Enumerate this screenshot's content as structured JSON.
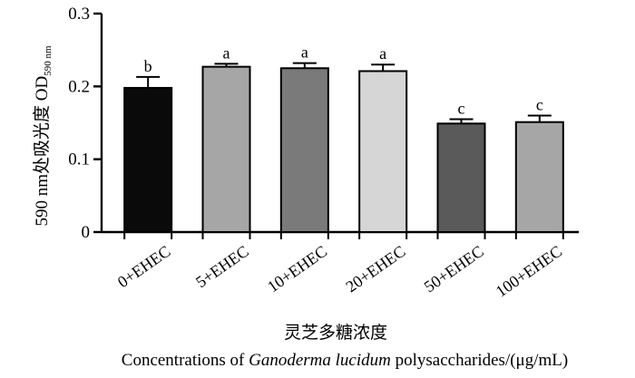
{
  "chart_data": {
    "type": "bar",
    "categories": [
      "0+EHEC",
      "5+EHEC",
      "10+EHEC",
      "20+EHEC",
      "50+EHEC",
      "100+EHEC"
    ],
    "values": [
      0.198,
      0.227,
      0.225,
      0.221,
      0.149,
      0.151
    ],
    "errors": [
      0.015,
      0.004,
      0.007,
      0.009,
      0.006,
      0.009
    ],
    "significance": [
      "b",
      "a",
      "a",
      "a",
      "c",
      "c"
    ],
    "bar_colors": [
      "#0a0a0a",
      "#a6a6a6",
      "#7a7a7a",
      "#d6d6d6",
      "#5a5a5a",
      "#a6a6a6"
    ],
    "ylim": [
      0,
      0.3
    ],
    "yticks": [
      {
        "value": 0,
        "label": "0"
      },
      {
        "value": 0.1,
        "label": "0.1"
      },
      {
        "value": 0.2,
        "label": "0.2"
      },
      {
        "value": 0.3,
        "label": "0.3"
      }
    ],
    "ylabel_main": "590 nm处吸光度  OD",
    "ylabel_sub": "590 nm",
    "xlabel_cn": "灵芝多糖浓度",
    "xlabel_en_prefix": "Concentrations of ",
    "xlabel_en_italic": "Ganoderma lucidum",
    "xlabel_en_suffix": " polysaccharides/(μg/mL)",
    "grid": false,
    "legend": "none"
  }
}
